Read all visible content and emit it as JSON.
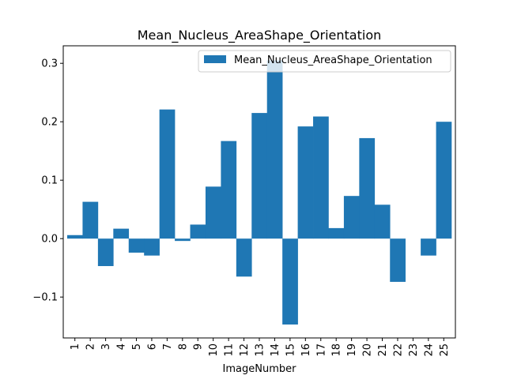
{
  "chart_data": {
    "type": "bar",
    "title": "Mean_Nucleus_AreaShape_Orientation",
    "xlabel": "ImageNumber",
    "ylabel": "",
    "categories": [
      "1",
      "2",
      "3",
      "4",
      "5",
      "6",
      "7",
      "8",
      "9",
      "10",
      "11",
      "12",
      "13",
      "14",
      "15",
      "16",
      "17",
      "18",
      "19",
      "20",
      "21",
      "22",
      "23",
      "24",
      "25"
    ],
    "series": [
      {
        "name": "Mean_Nucleus_AreaShape_Orientation",
        "color": "#1f77b4",
        "values": [
          0.006,
          0.063,
          -0.047,
          0.017,
          -0.024,
          -0.029,
          0.221,
          -0.004,
          0.024,
          0.089,
          0.167,
          -0.065,
          0.215,
          0.305,
          -0.147,
          0.192,
          0.209,
          0.018,
          0.073,
          0.172,
          0.058,
          -0.074,
          0.0,
          -0.029,
          0.2
        ]
      }
    ],
    "ylim": [
      -0.17,
      0.33
    ],
    "yticks": [
      -0.1,
      0.0,
      0.1,
      0.2,
      0.3
    ],
    "ytick_labels": [
      "−0.1",
      "0.0",
      "0.1",
      "0.2",
      "0.3"
    ],
    "legend_position": "top-right",
    "grid": false
  }
}
